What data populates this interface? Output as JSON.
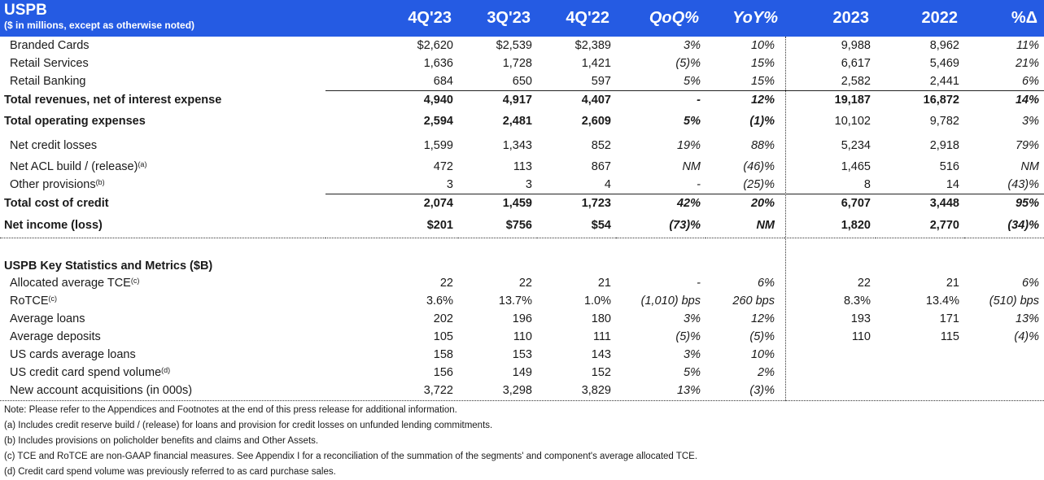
{
  "header": {
    "title": "USPB",
    "subtitle": "($ in millions, except as otherwise noted)",
    "columns": [
      "4Q'23",
      "3Q'23",
      "4Q'22",
      "QoQ%",
      "YoY%",
      "2023",
      "2022",
      "%Δ"
    ]
  },
  "rows": [
    {
      "label": "Branded Cards",
      "sup": "",
      "vals": [
        "$2,620",
        "$2,539",
        "$2,389",
        "3%",
        "10%",
        "9,988",
        "8,962",
        "11%"
      ]
    },
    {
      "label": "Retail Services",
      "sup": "",
      "vals": [
        "1,636",
        "1,728",
        "1,421",
        "(5)%",
        "15%",
        "6,617",
        "5,469",
        "21%"
      ]
    },
    {
      "label": "Retail Banking",
      "sup": "",
      "vals": [
        "684",
        "650",
        "597",
        "5%",
        "15%",
        "2,582",
        "2,441",
        "6%"
      ]
    },
    {
      "label": "Total revenues, net of interest expense",
      "sup": "",
      "vals": [
        "4,940",
        "4,917",
        "4,407",
        "-",
        "12%",
        "19,187",
        "16,872",
        "14%"
      ]
    },
    {
      "label": "Total operating expenses",
      "sup": "",
      "vals": [
        "2,594",
        "2,481",
        "2,609",
        "5%",
        "(1)%",
        "10,102",
        "9,782",
        "3%"
      ]
    },
    {
      "label": "Net credit losses",
      "sup": "",
      "vals": [
        "1,599",
        "1,343",
        "852",
        "19%",
        "88%",
        "5,234",
        "2,918",
        "79%"
      ]
    },
    {
      "label": "Net ACL build / (release)",
      "sup": "(a)",
      "vals": [
        "472",
        "113",
        "867",
        "NM",
        "(46)%",
        "1,465",
        "516",
        "NM"
      ]
    },
    {
      "label": "Other provisions",
      "sup": "(b)",
      "vals": [
        "3",
        "3",
        "4",
        "-",
        "(25)%",
        "8",
        "14",
        "(43)%"
      ]
    },
    {
      "label": "Total cost of credit",
      "sup": "",
      "vals": [
        "2,074",
        "1,459",
        "1,723",
        "42%",
        "20%",
        "6,707",
        "3,448",
        "95%"
      ]
    },
    {
      "label": "Net income (loss)",
      "sup": "",
      "vals": [
        "$201",
        "$756",
        "$54",
        "(73)%",
        "NM",
        "1,820",
        "2,770",
        "(34)%"
      ]
    },
    {
      "label": "USPB Key Statistics and Metrics ($B)",
      "sup": "",
      "vals": [
        "",
        "",
        "",
        "",
        "",
        "",
        "",
        ""
      ]
    },
    {
      "label": "Allocated average TCE",
      "sup": "(c)",
      "vals": [
        "22",
        "22",
        "21",
        "-",
        "6%",
        "22",
        "21",
        "6%"
      ]
    },
    {
      "label": "RoTCE",
      "sup": "(c)",
      "vals": [
        "3.6%",
        "13.7%",
        "1.0%",
        "(1,010) bps",
        "260 bps",
        "8.3%",
        "13.4%",
        "(510) bps"
      ]
    },
    {
      "label": "Average loans",
      "sup": "",
      "vals": [
        "202",
        "196",
        "180",
        "3%",
        "12%",
        "193",
        "171",
        "13%"
      ]
    },
    {
      "label": "Average deposits",
      "sup": "",
      "vals": [
        "105",
        "110",
        "111",
        "(5)%",
        "(5)%",
        "110",
        "115",
        "(4)%"
      ]
    },
    {
      "label": "US cards average loans",
      "sup": "",
      "vals": [
        "158",
        "153",
        "143",
        "3%",
        "10%",
        "",
        "",
        ""
      ]
    },
    {
      "label": "US credit card spend volume",
      "sup": "(d)",
      "vals": [
        "156",
        "149",
        "152",
        "5%",
        "2%",
        "",
        "",
        ""
      ]
    },
    {
      "label": "New account acquisitions (in 000s)",
      "sup": "",
      "vals": [
        "3,722",
        "3,298",
        "3,829",
        "13%",
        "(3)%",
        "",
        "",
        ""
      ]
    }
  ],
  "notes": [
    "Note:  Please refer to the Appendices and Footnotes at the end of this press release for additional information.",
    "(a) Includes credit reserve build / (release) for loans and provision for credit losses on unfunded lending commitments.",
    "(b) Includes provisions on policholder benefits and claims and Other Assets.",
    "(c) TCE and RoTCE are non-GAAP financial measures. See Appendix I for a reconciliation of the summation of the segments' and component's average allocated TCE.",
    "(d) Credit card spend volume was previously referred to as card purchase sales."
  ],
  "colors": {
    "header_bg": "#255be3",
    "header_text": "#ffffff"
  }
}
